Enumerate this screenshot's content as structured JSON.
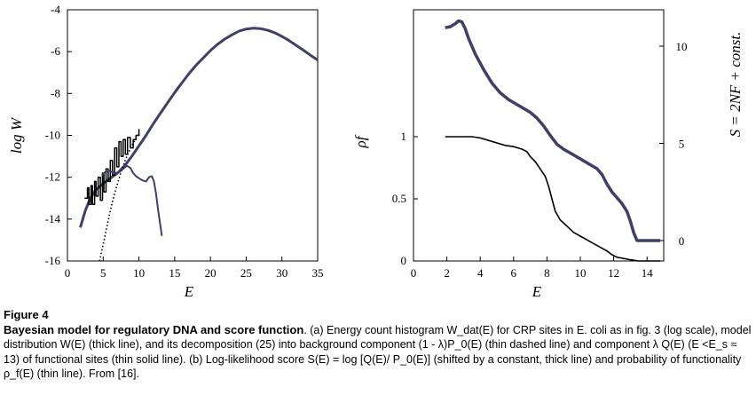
{
  "chart_data": [
    {
      "panel": "a",
      "type": "line",
      "xlabel": "E",
      "ylabel": "log W",
      "xlim": [
        0,
        35
      ],
      "ylim": [
        -16,
        -4
      ],
      "xticks": [
        0,
        5,
        10,
        15,
        20,
        25,
        30,
        35
      ],
      "yticks": [
        -16,
        -14,
        -12,
        -10,
        -8,
        -6,
        -4
      ],
      "grid": false,
      "series": [
        {
          "style": "thick",
          "x": [
            1.8,
            2.5,
            3.2,
            4,
            5,
            6,
            7,
            8,
            9,
            10,
            11,
            12,
            13,
            14,
            15,
            16,
            17,
            18,
            19,
            20,
            21,
            22,
            23,
            24,
            25,
            26,
            27,
            28,
            29,
            30,
            31,
            32,
            33,
            34,
            35
          ],
          "y": [
            -14.4,
            -13.6,
            -13.0,
            -12.6,
            -12.3,
            -12.05,
            -11.8,
            -11.45,
            -11.0,
            -10.5,
            -10.0,
            -9.45,
            -8.95,
            -8.45,
            -7.95,
            -7.5,
            -7.05,
            -6.65,
            -6.3,
            -5.95,
            -5.65,
            -5.4,
            -5.2,
            -5.02,
            -4.92,
            -4.88,
            -4.9,
            -4.98,
            -5.1,
            -5.27,
            -5.47,
            -5.7,
            -5.93,
            -6.17,
            -6.4
          ]
        },
        {
          "style": "histogram",
          "x": [
            2.4,
            2.8,
            3.0,
            3.3,
            3.5,
            3.8,
            4.0,
            4.3,
            4.6,
            4.9,
            5.1,
            5.4,
            5.7,
            6.0,
            6.3,
            6.6,
            6.9,
            7.2,
            7.5,
            7.8,
            8.1,
            8.4,
            8.8,
            9.2,
            9.6,
            10.0
          ],
          "y": [
            -13.0,
            -12.5,
            -13.3,
            -12.4,
            -13.3,
            -12.2,
            -12.9,
            -12.0,
            -13.1,
            -11.8,
            -12.7,
            -11.6,
            -12.2,
            -11.2,
            -11.9,
            -10.6,
            -11.5,
            -10.3,
            -11.0,
            -10.2,
            -10.9,
            -10.1,
            -10.6,
            -10.2,
            -10.0,
            -9.7
          ]
        },
        {
          "style": "thin-dashed",
          "x": [
            4.5,
            5.0,
            5.5,
            6.0,
            6.5,
            7.0,
            7.5,
            8.0,
            8.5,
            9.0,
            9.5,
            10.0
          ],
          "y": [
            -16,
            -15.2,
            -14.4,
            -13.6,
            -12.9,
            -12.3,
            -11.75,
            -11.25,
            -10.85,
            -10.5,
            -10.2,
            -9.9
          ]
        },
        {
          "style": "thin-solid",
          "x": [
            4.8,
            5.3,
            5.8,
            6.3,
            6.8,
            7.3,
            7.8,
            8.3,
            8.8,
            9.2,
            9.6,
            10.0,
            10.5,
            11.0,
            11.4,
            11.8,
            12.1,
            12.4,
            12.7,
            13.0,
            13.2
          ],
          "y": [
            -11.9,
            -11.75,
            -11.7,
            -11.75,
            -11.8,
            -11.75,
            -11.6,
            -11.45,
            -11.55,
            -11.8,
            -11.95,
            -12.05,
            -12.15,
            -12.2,
            -12.0,
            -11.95,
            -12.2,
            -12.8,
            -13.6,
            -14.3,
            -14.8
          ]
        }
      ]
    },
    {
      "panel": "b",
      "type": "line",
      "xlabel": "E",
      "ylabel": "ρf",
      "ylabel_right": "S = 2NF + const.",
      "xlim": [
        0,
        15
      ],
      "xticks": [
        0,
        2,
        4,
        6,
        8,
        10,
        12,
        14
      ],
      "yticks_left": [
        0,
        0.5,
        1
      ],
      "yticks_right": [
        0,
        5,
        10
      ],
      "grid": false,
      "series": [
        {
          "style": "thin",
          "axis": "left",
          "x": [
            1.9,
            2.5,
            3,
            3.5,
            4,
            4.5,
            5,
            5.5,
            6,
            6.5,
            6.8,
            7,
            7.3,
            7.6,
            7.9,
            8.1,
            8.3,
            8.5,
            8.8,
            9.2,
            9.6,
            10,
            10.4,
            10.8,
            11.2,
            11.6,
            11.9,
            12.2,
            12.6,
            13,
            13.5,
            14,
            14.8
          ],
          "y": [
            1.0,
            1.0,
            1.0,
            1.0,
            0.99,
            0.97,
            0.95,
            0.93,
            0.92,
            0.9,
            0.88,
            0.84,
            0.8,
            0.74,
            0.68,
            0.6,
            0.5,
            0.4,
            0.33,
            0.28,
            0.23,
            0.2,
            0.17,
            0.14,
            0.11,
            0.08,
            0.05,
            0.03,
            0.02,
            0.01,
            0.0,
            0.0,
            0.0
          ]
        },
        {
          "style": "thick",
          "axis": "right",
          "x": [
            1.9,
            2.2,
            2.5,
            2.7,
            2.9,
            3.1,
            3.3,
            3.7,
            4.2,
            4.7,
            5.2,
            5.7,
            6.2,
            6.6,
            7.0,
            7.4,
            7.8,
            8.2,
            8.6,
            9.0,
            9.4,
            9.8,
            10.2,
            10.6,
            11.0,
            11.3,
            11.6,
            11.9,
            12.2,
            12.5,
            12.8,
            13.0,
            13.2,
            13.4,
            14.0,
            14.8
          ],
          "y": [
            10.95,
            11.0,
            11.15,
            11.3,
            11.25,
            10.9,
            10.4,
            9.6,
            8.8,
            8.1,
            7.6,
            7.25,
            7.0,
            6.8,
            6.6,
            6.3,
            5.9,
            5.4,
            4.95,
            4.7,
            4.5,
            4.3,
            4.1,
            3.9,
            3.7,
            3.4,
            2.9,
            2.5,
            2.2,
            1.9,
            1.5,
            1.0,
            0.4,
            0.0,
            0.0,
            0.0
          ]
        }
      ]
    }
  ],
  "caption": {
    "figure_number": "Figure 4",
    "title": "Bayesian model for regulatory DNA and score function",
    "body": ". (a) Energy count histogram W_dat(E) for CRP sites in E. coli as in fig. 3 (log scale), model distribution W(E) (thick line), and its decomposition (25) into background component (1 - λ)P_0(E) (thin dashed line) and component λ Q(E) (E <E_s ≈ 13) of functional sites (thin solid line). (b) Log-likelihood score S(E) = log [Q(E)/ P_0(E)] (shifted by a constant, thick line) and probability of functionality ρ_f(E) (thin line). From [16]."
  },
  "colors": {
    "thick_line": "#3f3f68",
    "thin_line": "#000000",
    "text": "#000000"
  }
}
